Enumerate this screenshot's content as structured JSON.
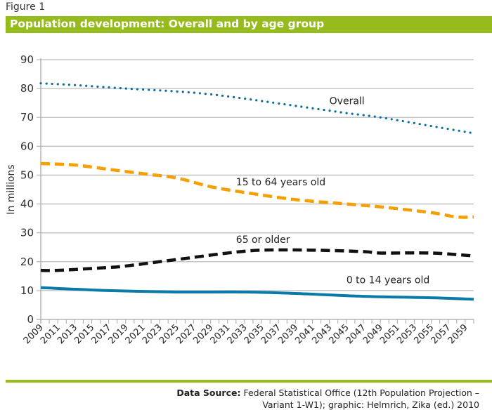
{
  "figure_label": "Figure 1",
  "source": {
    "label": "Data Source:",
    "line1": "Federal Statistical Office (12th Population Projection –",
    "line2": "Variant 1-W1); graphic: Helmrich, Zika (ed.) 2010"
  },
  "colors": {
    "title_bar": "#95bb1c",
    "overall": "#0a6f9e",
    "age_15_64": "#f5a000",
    "age_65_plus": "#111111",
    "age_0_14": "#0a7aa8",
    "grid": "#bdbdbd"
  },
  "chart_data": {
    "type": "line",
    "title": "Population development: Overall and by age group",
    "xlabel": "",
    "ylabel": "In millions",
    "ylim": [
      0,
      90
    ],
    "yticks": [
      0,
      10,
      20,
      30,
      40,
      50,
      60,
      70,
      80,
      90
    ],
    "xlim": [
      2009,
      2060
    ],
    "xtick_labels": [
      "2009",
      "2011",
      "2013",
      "2015",
      "2017",
      "2019",
      "2021",
      "2023",
      "2025",
      "2027",
      "2029",
      "2031",
      "2033",
      "2035",
      "2037",
      "2039",
      "2041",
      "2043",
      "2045",
      "2047",
      "2049",
      "2051",
      "2053",
      "2055",
      "2057",
      "2059"
    ],
    "grid": true,
    "legend": "inline labels",
    "series": [
      {
        "name": "Overall",
        "style": "dotted",
        "x": [
          2009,
          2013,
          2019,
          2025,
          2029,
          2033,
          2039,
          2045,
          2049,
          2055,
          2060
        ],
        "values": [
          81.8,
          81.2,
          80.0,
          79.0,
          78.0,
          76.5,
          74.0,
          71.5,
          70.0,
          67.0,
          64.5
        ]
      },
      {
        "name": "15 to 64 years old",
        "style": "dashed",
        "x": [
          2009,
          2013,
          2017,
          2021,
          2025,
          2029,
          2033,
          2039,
          2045,
          2049,
          2055,
          2058,
          2060
        ],
        "values": [
          54.0,
          53.5,
          52.0,
          50.5,
          49.0,
          46.0,
          44.0,
          41.5,
          40.0,
          39.0,
          37.0,
          35.5,
          35.5
        ]
      },
      {
        "name": "65 or older",
        "style": "dashed",
        "x": [
          2009,
          2011,
          2017,
          2019,
          2023,
          2027,
          2031,
          2035,
          2041,
          2047,
          2049,
          2055,
          2060
        ],
        "values": [
          17.0,
          17.0,
          18.0,
          18.5,
          20.0,
          21.5,
          23.0,
          24.0,
          24.0,
          23.5,
          23.0,
          23.0,
          22.0
        ]
      },
      {
        "name": "0 to 14 years old",
        "style": "solid",
        "x": [
          2009,
          2017,
          2025,
          2033,
          2039,
          2047,
          2055,
          2060
        ],
        "values": [
          11.0,
          10.0,
          9.5,
          9.5,
          9.0,
          8.0,
          7.5,
          7.0
        ]
      }
    ],
    "annotations": [
      {
        "text": "Overall",
        "x": 2043,
        "y": 74.5
      },
      {
        "text": "15 to 64 years old",
        "x": 2032,
        "y": 46.5
      },
      {
        "text": "65 or older",
        "x": 2032,
        "y": 26.5
      },
      {
        "text": "0 to 14 years old",
        "x": 2045,
        "y": 12.5
      }
    ]
  }
}
